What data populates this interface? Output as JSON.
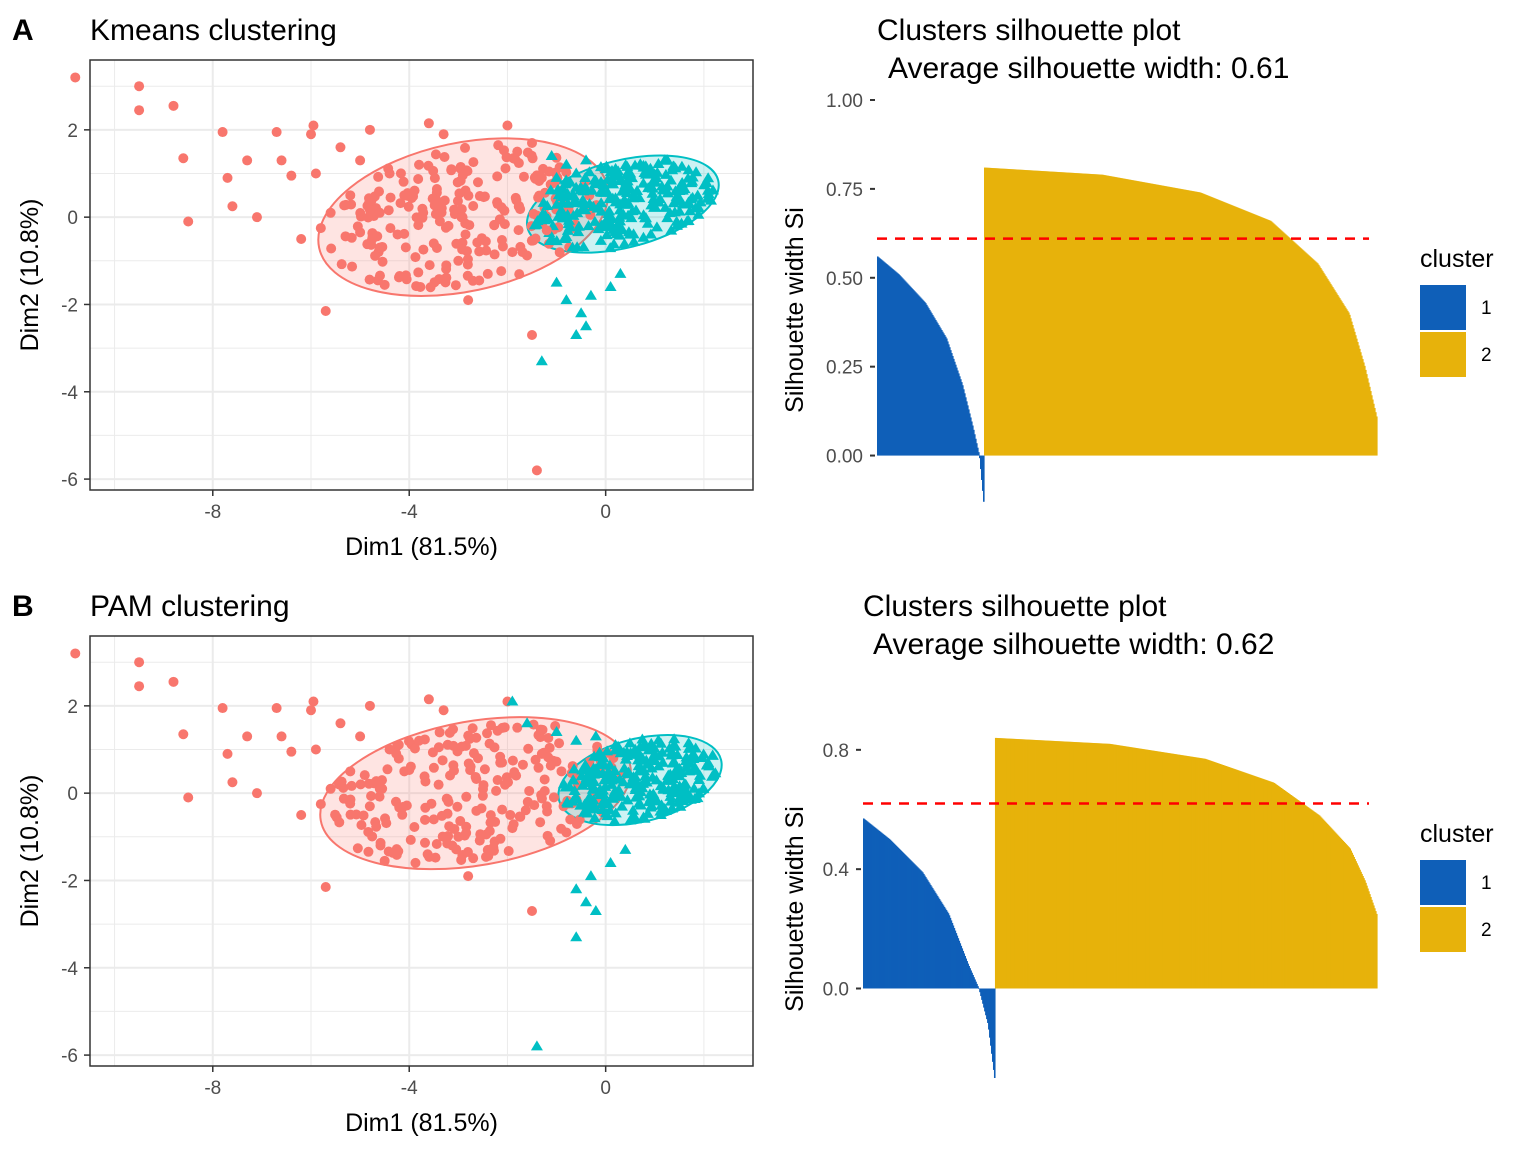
{
  "panels": {
    "A": {
      "letter": "A",
      "scatter_title": "Kmeans clustering",
      "silhouette_title_line1": "Clusters silhouette plot",
      "silhouette_title_line2": "Average silhouette width: 0.61"
    },
    "B": {
      "letter": "B",
      "scatter_title": "PAM clustering",
      "silhouette_title_line1": "Clusters silhouette plot",
      "silhouette_title_line2": "Average silhouette width: 0.62"
    }
  },
  "colors": {
    "scatter_cluster_1": "#F8766D",
    "scatter_cluster_2": "#00BFC4",
    "sil_cluster_1": "#0F5FB8",
    "sil_cluster_2": "#E7B20B",
    "avg_line": "#FF0000",
    "grid": "#EBEBEB",
    "axis_text": "#4D4D4D"
  },
  "chart_data": [
    {
      "id": "kmeans-scatter",
      "type": "scatter",
      "title": "Kmeans clustering",
      "xlabel": "Dim1 (81.5%)",
      "ylabel": "Dim2 (10.8%)",
      "xlim": [
        -10.5,
        3.0
      ],
      "ylim": [
        -6.25,
        3.6
      ],
      "xticks": [
        -8,
        -4,
        0
      ],
      "yticks": [
        2,
        0,
        -2,
        -4,
        -6
      ],
      "grid": true,
      "series": [
        {
          "cluster": "1",
          "marker": "circle",
          "ellipse": {
            "cx": -2.9,
            "cy": 0.0,
            "rx": 3.0,
            "ry": 1.7,
            "angle_deg": -12
          },
          "points": [
            [
              -10.8,
              3.2
            ],
            [
              -9.5,
              3.0
            ],
            [
              -9.5,
              2.45
            ],
            [
              -8.8,
              2.55
            ],
            [
              -8.6,
              1.35
            ],
            [
              -8.5,
              -0.1
            ],
            [
              -7.8,
              1.95
            ],
            [
              -7.7,
              0.9
            ],
            [
              -7.6,
              0.25
            ],
            [
              -7.3,
              1.3
            ],
            [
              -7.1,
              0.0
            ],
            [
              -6.7,
              1.95
            ],
            [
              -6.6,
              1.3
            ],
            [
              -6.4,
              0.95
            ],
            [
              -6.2,
              -0.5
            ],
            [
              -6.0,
              1.9
            ],
            [
              -5.95,
              2.1
            ],
            [
              -5.9,
              1.0
            ],
            [
              -5.8,
              -0.25
            ],
            [
              -5.7,
              -2.15
            ],
            [
              -5.6,
              0.1
            ],
            [
              -5.4,
              1.6
            ],
            [
              -5.2,
              0.5
            ],
            [
              -5.0,
              1.3
            ],
            [
              -4.8,
              2.0
            ],
            [
              -4.6,
              0.1
            ],
            [
              -4.5,
              -1.55
            ],
            [
              -4.4,
              1.0
            ],
            [
              -4.1,
              0.5
            ],
            [
              -3.8,
              1.2
            ],
            [
              -3.6,
              2.15
            ],
            [
              -3.5,
              -0.6
            ],
            [
              -3.3,
              1.9
            ],
            [
              -3.2,
              -0.2
            ],
            [
              -3.0,
              -1.0
            ],
            [
              -2.8,
              -1.9
            ],
            [
              -2.6,
              0.8
            ],
            [
              -2.4,
              -1.3
            ],
            [
              -2.2,
              0.3
            ],
            [
              -2.0,
              2.1
            ],
            [
              -1.9,
              -0.8
            ],
            [
              -1.8,
              1.5
            ],
            [
              -1.5,
              1.7
            ],
            [
              -1.5,
              -2.7
            ],
            [
              -1.4,
              -5.8
            ],
            [
              -1.3,
              0.9
            ],
            [
              -1.2,
              -0.3
            ]
          ]
        },
        {
          "cluster": "2",
          "marker": "triangle",
          "ellipse": {
            "cx": 0.35,
            "cy": 0.3,
            "rx": 2.0,
            "ry": 1.0,
            "angle_deg": -14
          },
          "points": [
            [
              -1.3,
              -3.3
            ],
            [
              -0.6,
              -2.7
            ],
            [
              -0.4,
              -2.5
            ],
            [
              -0.5,
              -2.2
            ],
            [
              -0.8,
              -1.9
            ],
            [
              -1.0,
              -1.5
            ],
            [
              -0.3,
              -1.8
            ],
            [
              0.1,
              -1.6
            ],
            [
              0.3,
              -1.3
            ],
            [
              -1.1,
              1.4
            ],
            [
              -1.0,
              0.9
            ],
            [
              -0.8,
              1.2
            ],
            [
              -0.6,
              1.0
            ],
            [
              -0.4,
              1.3
            ],
            [
              0.0,
              1.1
            ],
            [
              0.5,
              1.0
            ],
            [
              1.0,
              0.8
            ],
            [
              1.5,
              0.6
            ],
            [
              1.7,
              0.3
            ],
            [
              1.9,
              0.2
            ]
          ]
        }
      ]
    },
    {
      "id": "kmeans-silhouette",
      "type": "bar",
      "title": "Clusters silhouette plot\n Average silhouette width: 0.61",
      "xlabel": "",
      "ylabel": "Silhouette width Si",
      "ylim": [
        -0.125,
        1.0
      ],
      "yticks": [
        1.0,
        0.75,
        0.5,
        0.25,
        0.0
      ],
      "ytick_labels": [
        "1.00",
        "0.75",
        "0.50",
        "0.25",
        "0.00"
      ],
      "average_width": 0.61,
      "legend": {
        "title": "cluster",
        "entries": [
          "1",
          "2"
        ],
        "position": "right"
      },
      "series": [
        {
          "name": "1",
          "count": 107,
          "max": 0.56,
          "min": -0.13,
          "profile": [
            [
              0,
              0.56
            ],
            [
              0.2,
              0.51
            ],
            [
              0.45,
              0.43
            ],
            [
              0.65,
              0.33
            ],
            [
              0.8,
              0.2
            ],
            [
              0.9,
              0.08
            ],
            [
              0.96,
              0.0
            ],
            [
              1.0,
              -0.13
            ]
          ]
        },
        {
          "name": "2",
          "count": 393,
          "max": 0.81,
          "min": 0.11,
          "profile": [
            [
              0,
              0.81
            ],
            [
              0.3,
              0.79
            ],
            [
              0.55,
              0.74
            ],
            [
              0.73,
              0.66
            ],
            [
              0.85,
              0.54
            ],
            [
              0.93,
              0.4
            ],
            [
              0.97,
              0.25
            ],
            [
              1.0,
              0.11
            ]
          ]
        }
      ]
    },
    {
      "id": "pam-scatter",
      "type": "scatter",
      "title": "PAM clustering",
      "xlabel": "Dim1 (81.5%)",
      "ylabel": "Dim2 (10.8%)",
      "xlim": [
        -10.5,
        3.0
      ],
      "ylim": [
        -6.25,
        3.6
      ],
      "xticks": [
        -8,
        -4,
        0
      ],
      "yticks": [
        2,
        0,
        -2,
        -4,
        -6
      ],
      "grid": true,
      "series": [
        {
          "cluster": "1",
          "marker": "circle",
          "ellipse": {
            "cx": -2.65,
            "cy": 0.0,
            "rx": 3.2,
            "ry": 1.65,
            "angle_deg": -10
          },
          "points": [
            [
              -10.8,
              3.2
            ],
            [
              -9.5,
              3.0
            ],
            [
              -9.5,
              2.45
            ],
            [
              -8.8,
              2.55
            ],
            [
              -8.6,
              1.35
            ],
            [
              -8.5,
              -0.1
            ],
            [
              -7.8,
              1.95
            ],
            [
              -7.7,
              0.9
            ],
            [
              -7.6,
              0.25
            ],
            [
              -7.3,
              1.3
            ],
            [
              -7.1,
              0.0
            ],
            [
              -6.7,
              1.95
            ],
            [
              -6.6,
              1.3
            ],
            [
              -6.4,
              0.95
            ],
            [
              -6.2,
              -0.5
            ],
            [
              -6.0,
              1.9
            ],
            [
              -5.95,
              2.1
            ],
            [
              -5.9,
              1.0
            ],
            [
              -5.8,
              -0.25
            ],
            [
              -5.7,
              -2.15
            ],
            [
              -5.6,
              0.1
            ],
            [
              -5.4,
              1.6
            ],
            [
              -5.2,
              0.5
            ],
            [
              -5.0,
              1.3
            ],
            [
              -4.8,
              2.0
            ],
            [
              -4.6,
              0.1
            ],
            [
              -4.5,
              -1.55
            ],
            [
              -4.4,
              1.0
            ],
            [
              -4.1,
              0.5
            ],
            [
              -3.8,
              1.2
            ],
            [
              -3.6,
              2.15
            ],
            [
              -3.5,
              -0.6
            ],
            [
              -3.3,
              1.9
            ],
            [
              -3.2,
              -0.2
            ],
            [
              -3.0,
              -1.0
            ],
            [
              -2.8,
              -1.9
            ],
            [
              -2.6,
              0.8
            ],
            [
              -2.4,
              -1.3
            ],
            [
              -2.2,
              0.3
            ],
            [
              -2.0,
              2.1
            ],
            [
              -1.9,
              -0.8
            ],
            [
              -1.8,
              1.5
            ],
            [
              -1.5,
              -2.7
            ],
            [
              -1.3,
              0.9
            ],
            [
              -1.2,
              -0.3
            ],
            [
              -0.9,
              0.5
            ],
            [
              -0.8,
              -0.9
            ]
          ]
        },
        {
          "cluster": "2",
          "marker": "triangle",
          "ellipse": {
            "cx": 0.7,
            "cy": 0.3,
            "rx": 1.7,
            "ry": 0.95,
            "angle_deg": -14
          },
          "points": [
            [
              -1.4,
              -5.8
            ],
            [
              -0.6,
              -3.3
            ],
            [
              -0.2,
              -2.7
            ],
            [
              -0.4,
              -2.5
            ],
            [
              -0.6,
              -2.2
            ],
            [
              -0.3,
              -1.9
            ],
            [
              0.1,
              -1.6
            ],
            [
              0.4,
              -1.3
            ],
            [
              -1.9,
              2.1
            ],
            [
              -1.6,
              1.6
            ],
            [
              -1.0,
              1.4
            ],
            [
              -0.6,
              1.2
            ],
            [
              -0.2,
              1.3
            ],
            [
              0.2,
              1.1
            ],
            [
              0.6,
              1.0
            ],
            [
              1.0,
              0.9
            ],
            [
              1.4,
              0.7
            ],
            [
              1.7,
              0.5
            ],
            [
              1.9,
              0.3
            ],
            [
              1.8,
              0.1
            ]
          ]
        }
      ]
    },
    {
      "id": "pam-silhouette",
      "type": "bar",
      "title": "Clusters silhouette plot\n Average silhouette width: 0.62",
      "xlabel": "",
      "ylabel": "Silhouette width Si",
      "ylim": [
        -0.3,
        0.9
      ],
      "yticks": [
        0.8,
        0.4,
        0.0
      ],
      "ytick_labels": [
        "0.8",
        "0.4",
        "0.0"
      ],
      "average_width": 0.62,
      "legend": {
        "title": "cluster",
        "entries": [
          "1",
          "2"
        ],
        "position": "right"
      },
      "series": [
        {
          "name": "1",
          "count": 134,
          "max": 0.57,
          "min": -0.3,
          "profile": [
            [
              0,
              0.57
            ],
            [
              0.2,
              0.5
            ],
            [
              0.45,
              0.39
            ],
            [
              0.65,
              0.25
            ],
            [
              0.8,
              0.08
            ],
            [
              0.88,
              0.0
            ],
            [
              0.95,
              -0.12
            ],
            [
              1.0,
              -0.3
            ]
          ]
        },
        {
          "name": "2",
          "count": 388,
          "max": 0.84,
          "min": 0.25,
          "profile": [
            [
              0,
              0.84
            ],
            [
              0.3,
              0.82
            ],
            [
              0.55,
              0.77
            ],
            [
              0.73,
              0.69
            ],
            [
              0.85,
              0.58
            ],
            [
              0.93,
              0.47
            ],
            [
              0.97,
              0.36
            ],
            [
              1.0,
              0.25
            ]
          ]
        }
      ]
    }
  ]
}
